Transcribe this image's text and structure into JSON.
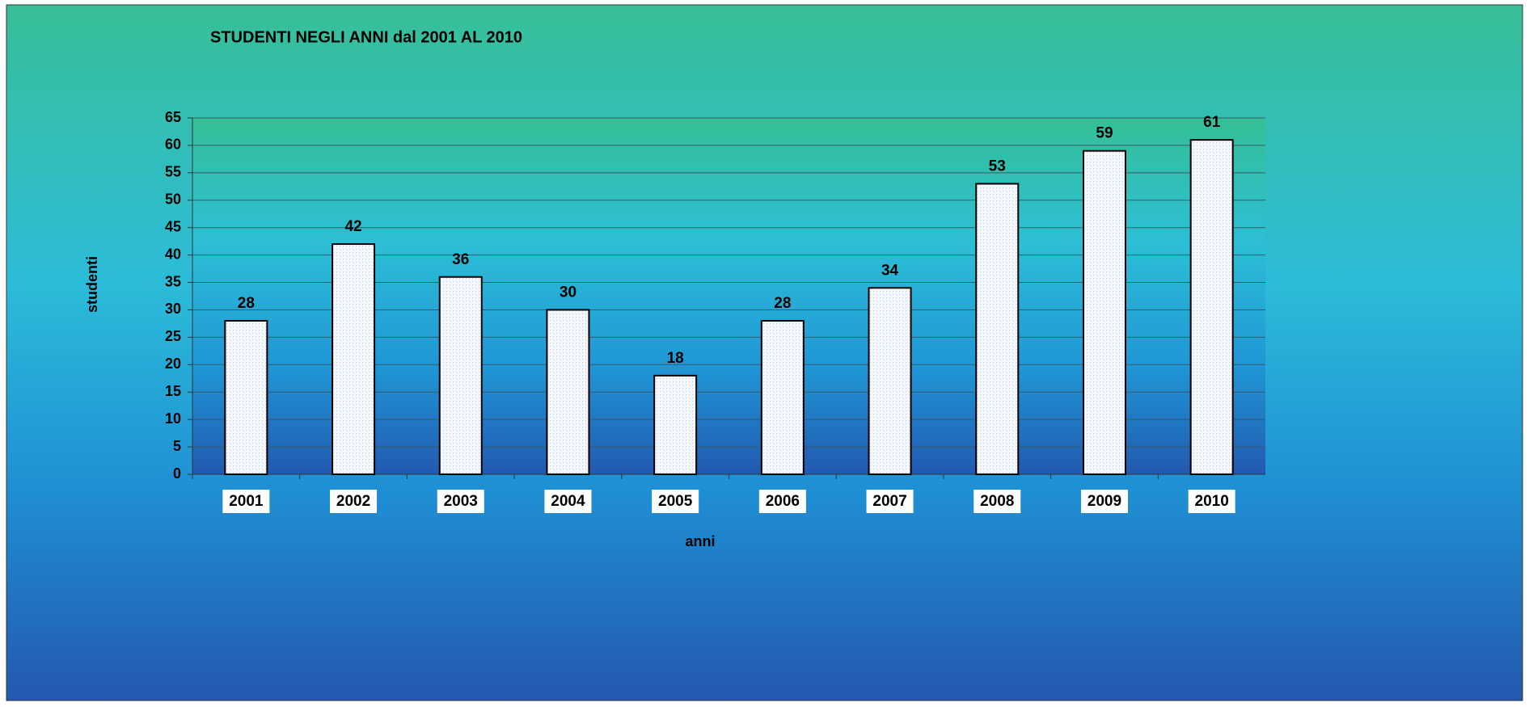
{
  "chart_data": {
    "type": "bar",
    "title": "STUDENTI NEGLI ANNI dal 2001 AL 2010",
    "x_label": "anni",
    "y_label": "studenti",
    "categories": [
      "2001",
      "2002",
      "2003",
      "2004",
      "2005",
      "2006",
      "2007",
      "2008",
      "2009",
      "2010"
    ],
    "values": [
      28,
      42,
      36,
      30,
      18,
      28,
      34,
      53,
      59,
      61
    ],
    "color": "#f4f7fb",
    "ylim": [
      0,
      65
    ],
    "yticks": [
      0,
      5,
      10,
      15,
      20,
      25,
      30,
      35,
      40,
      45,
      50,
      55,
      60,
      65
    ],
    "grid": true
  }
}
